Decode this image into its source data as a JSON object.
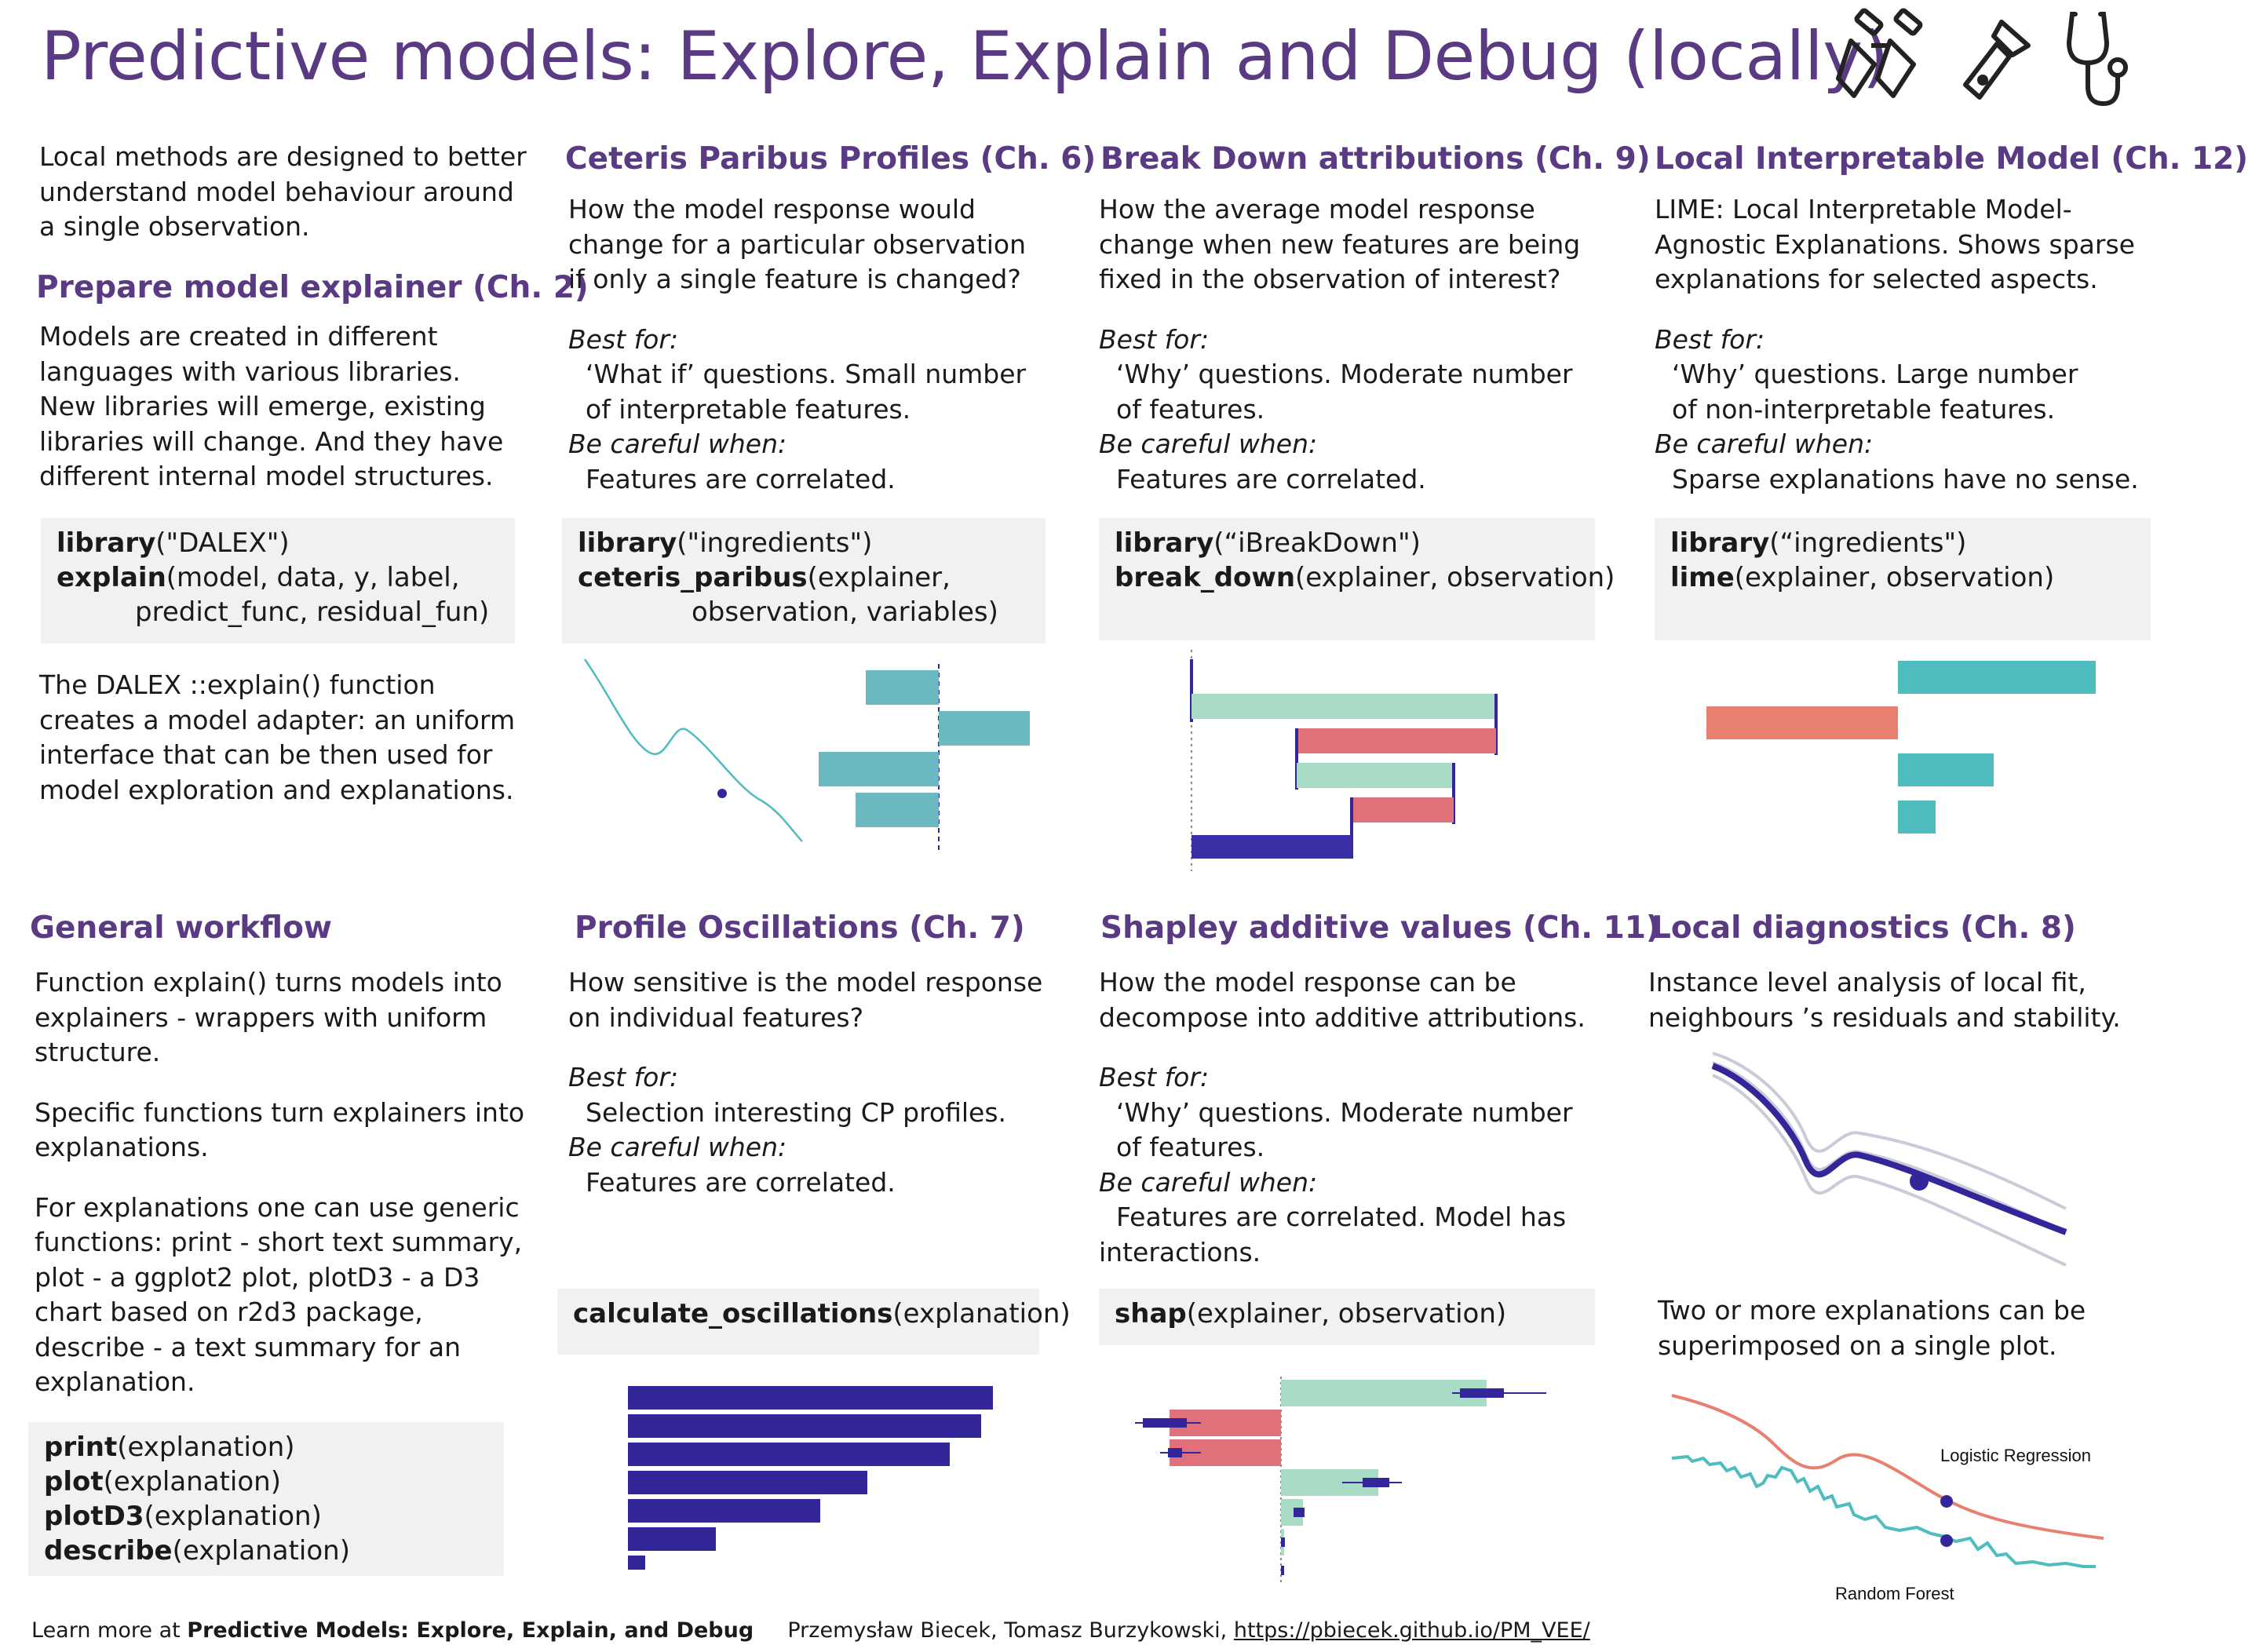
{
  "title": "Predictive models: Explore, Explain and Debug (locally)",
  "header_icons": [
    "binoculars-icon",
    "flashlight-icon",
    "stethoscope-icon"
  ],
  "intro": {
    "lines": [
      "Local methods are designed to better",
      "understand model behaviour around",
      "a single observation."
    ]
  },
  "prepare": {
    "heading": "Prepare model explainer (Ch. 2)",
    "lines": [
      "Models are created in different",
      "languages with various libraries.",
      "New libraries will emerge, existing",
      "libraries will change. And they have",
      "different internal model structures."
    ],
    "code": [
      {
        "fn": "library",
        "args": "(\"DALEX\")"
      },
      {
        "fn": "explain",
        "args": "(model, data, y, label,"
      },
      {
        "fn": "",
        "args": "predict_func, residual_fun)"
      }
    ],
    "after_lines": [
      "The DALEX ::explain() function",
      "creates a model adapter: an uniform",
      "interface that can be then used for",
      "model exploration and explanations."
    ]
  },
  "ceteris": {
    "heading": "Ceteris Paribus Profiles (Ch. 6)",
    "lines": [
      "How the model response would",
      "change for a particular observation",
      "if only a single feature is changed?"
    ],
    "best_label": "Best for:",
    "best": [
      "‘What if’ questions. Small number",
      " of interpretable features."
    ],
    "careful_label": "Be careful when:",
    "careful": [
      "Features are correlated."
    ],
    "code": [
      {
        "fn": "library",
        "args": "(\"ingredients\")"
      },
      {
        "fn": "ceteris_paribus",
        "args": "(explainer,"
      },
      {
        "fn": "",
        "args": "observation, variables)"
      }
    ]
  },
  "breakdown": {
    "heading": "Break Down attributions (Ch. 9)",
    "lines": [
      "How the average model response",
      "change when new features are being",
      "fixed in the observation of interest?"
    ],
    "best_label": "Best for:",
    "best": [
      "‘Why’ questions. Moderate number",
      " of features."
    ],
    "careful_label": "Be careful when:",
    "careful": [
      "Features are correlated."
    ],
    "code": [
      {
        "fn": "library",
        "args": "(“iBreakDown\")"
      },
      {
        "fn": "break_down",
        "args": "(explainer, observation)"
      }
    ]
  },
  "lime": {
    "heading": "Local Interpretable Model (Ch. 12)",
    "lines": [
      "LIME: Local Interpretable Model-",
      "Agnostic Explanations. Shows sparse",
      "explanations for selected aspects."
    ],
    "best_label": "Best for:",
    "best": [
      "‘Why’ questions. Large number",
      " of non-interpretable features."
    ],
    "careful_label": "Be careful when:",
    "careful": [
      "Sparse explanations have no sense."
    ],
    "code": [
      {
        "fn": "library",
        "args": "(“ingredients\")"
      },
      {
        "fn": "lime",
        "args": "(explainer, observation)"
      }
    ]
  },
  "workflow": {
    "heading": "General workflow",
    "p1": [
      "Function explain() turns models into",
      "explainers - wrappers with uniform",
      "structure."
    ],
    "p2": [
      "Specific functions turn explainers into",
      "explanations."
    ],
    "p3": [
      "For explanations one can use generic",
      "functions: print - short text summary,",
      "plot - a ggplot2 plot, plotD3 - a D3",
      "chart based on r2d3 package,",
      "describe - a text summary for an",
      "explanation."
    ],
    "code": [
      {
        "fn": "print",
        "args": "(explanation)"
      },
      {
        "fn": "plot",
        "args": "(explanation)"
      },
      {
        "fn": "plotD3",
        "args": "(explanation)"
      },
      {
        "fn": "describe",
        "args": "(explanation)"
      }
    ]
  },
  "oscillations": {
    "heading": "Profile Oscillations (Ch. 7)",
    "lines": [
      "How sensitive is the model response",
      "on individual features?"
    ],
    "best_label": "Best for:",
    "best": [
      "Selection interesting CP profiles."
    ],
    "careful_label": "Be careful when:",
    "careful": [
      "Features are correlated."
    ],
    "code": [
      {
        "fn": "calculate_oscillations",
        "args": "(explanation)"
      }
    ]
  },
  "shapley": {
    "heading": "Shapley additive values (Ch. 11)",
    "lines": [
      "How the model response can be",
      "decompose into additive attributions."
    ],
    "best_label": "Best for:",
    "best": [
      "‘Why’ questions. Moderate number",
      " of features."
    ],
    "careful_label": "Be careful when:",
    "careful": [
      "Features are correlated. Model has",
      "interactions."
    ],
    "code": [
      {
        "fn": "shap",
        "args": "(explainer, observation)"
      }
    ]
  },
  "diagnostics": {
    "heading": "Local diagnostics (Ch. 8)",
    "lines": [
      "Instance level analysis of local fit,",
      "neighbours ’s residuals and stability."
    ],
    "two_lines": [
      "Two or more explanations can be",
      "superimposed on a single plot."
    ],
    "legend_lr": "Logistic Regression",
    "legend_rf": "Random Forest"
  },
  "footer": {
    "prefix": "Learn more at ",
    "book": "Predictive Models: Explore, Explain, and Debug",
    "authors": "Przemysław Biecek, Tomasz Burzykowski,",
    "url": "https://pbiecek.github.io/PM_VEE/"
  },
  "colors": {
    "purple": "#5b3a84",
    "teal": "#4fbcc0",
    "mint": "#a8dcc4",
    "red": "#e0707a",
    "salmon": "#e88070",
    "navy": "#33269b",
    "gray": "#cacad8"
  }
}
